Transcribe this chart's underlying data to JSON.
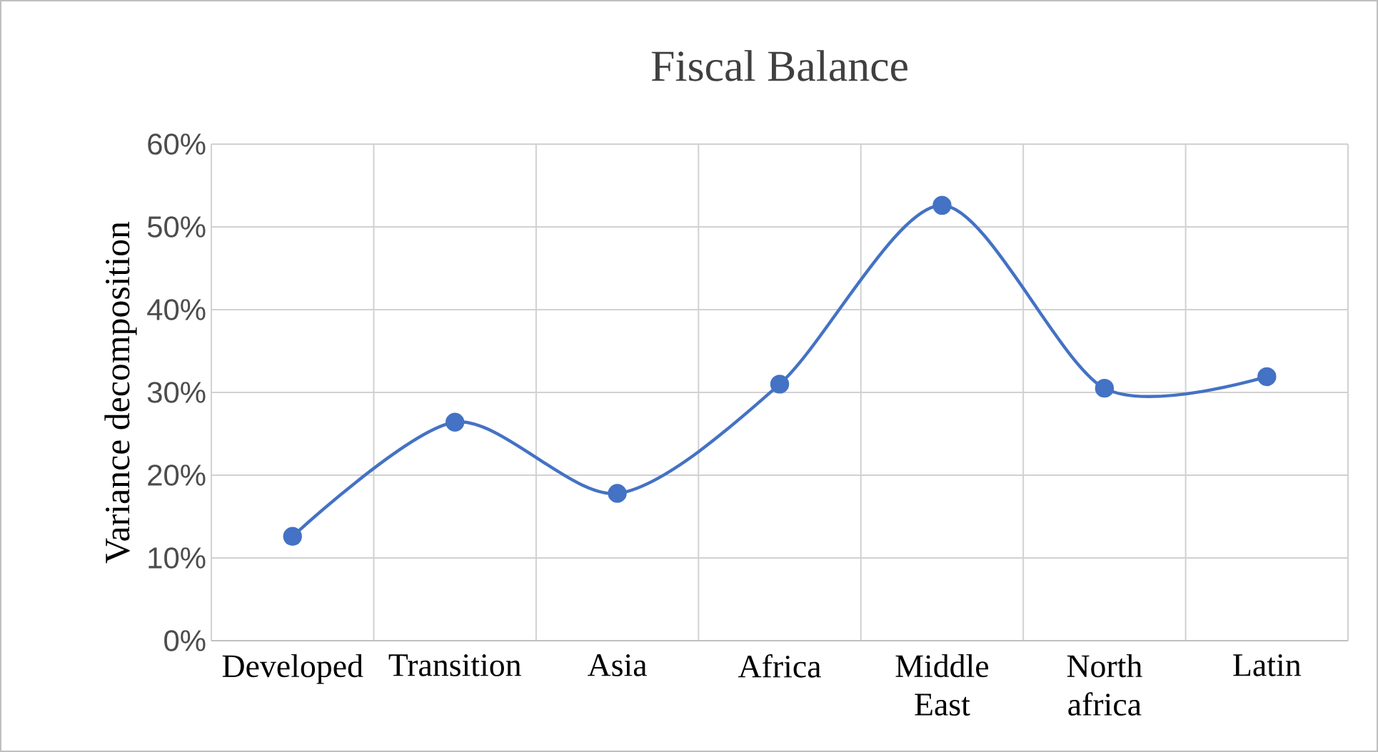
{
  "chart_data": {
    "type": "line",
    "title": "Fiscal Balance",
    "ylabel": "Variance decomposition",
    "categories": [
      "Developed",
      "Transition",
      "Asia",
      "Africa",
      "Middle East",
      "North africa",
      "Latin"
    ],
    "series": [
      {
        "color": "#4472c4",
        "values": [
          12.6,
          26.4,
          17.8,
          31.0,
          52.6,
          30.5,
          31.9
        ]
      }
    ],
    "ylim": [
      0,
      60
    ],
    "yticks": [
      {
        "value": 0,
        "label": "0%"
      },
      {
        "value": 10,
        "label": "10%"
      },
      {
        "value": 20,
        "label": "20%"
      },
      {
        "value": 30,
        "label": "30%"
      },
      {
        "value": 40,
        "label": "40%"
      },
      {
        "value": 50,
        "label": "50%"
      },
      {
        "value": 60,
        "label": "60%"
      }
    ],
    "grid": true,
    "marker": "circle",
    "line_style": "solid"
  }
}
